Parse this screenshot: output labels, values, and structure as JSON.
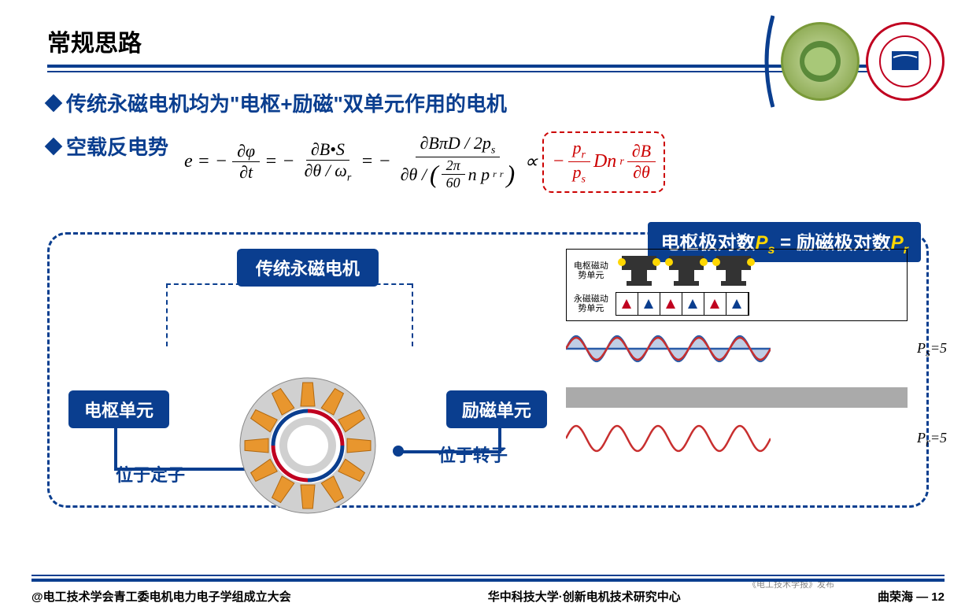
{
  "title": "常规思路",
  "bullet1": "传统永磁电机均为\"电枢+励磁\"双单元作用的电机",
  "bullet2": "空载反电势",
  "equation": {
    "lhs": "e",
    "term1_num": "∂φ",
    "term1_den": "∂t",
    "term2_num": "∂B•S",
    "term2_den": "∂θ / ω",
    "term3_num": "∂BπD / 2p",
    "term3_den_outer": "∂θ /",
    "term3_den_inner_num": "2π",
    "term3_den_inner_den": "60",
    "term3_den_tail": "n p",
    "prop": "∝",
    "red_frac_num": "p",
    "red_frac_den": "p",
    "red_tail1": "Dn",
    "red_tail2_num": "∂B",
    "red_tail2_den": "∂θ",
    "sub_s": "s",
    "sub_r": "r"
  },
  "annotation": {
    "part1": "电枢极对数",
    "var1": "P",
    "sub1": "s",
    "eq": "=",
    "part2": "励磁极对数",
    "var2": "P",
    "sub2": "r"
  },
  "diagram": {
    "center_label": "传统永磁电机",
    "left_label": "电枢单元",
    "right_label": "励磁单元",
    "left_sub": "位于定子",
    "right_sub": "位于转子",
    "unit1_label": "电枢磁动势单元",
    "unit2_label": "永磁磁动势单元",
    "ps_label": "P",
    "ps_sub": "s",
    "ps_val": "=5",
    "pr_label": "P",
    "pr_sub": "r",
    "pr_val": "=5"
  },
  "colors": {
    "primary": "#0a3e8f",
    "accent_red": "#c00020",
    "accent_orange": "#e8962e",
    "wave_blue": "#2a5ca8",
    "wave_red": "#c82f2f",
    "gray": "#aaaaaa",
    "yellow": "#ffd700"
  },
  "footer": {
    "left": "@电工技术学会青工委电机电力电子学组成立大会",
    "center": "华中科技大学·创新电机技术研究中心",
    "right_name": "曲荣海",
    "right_page": "— 12"
  },
  "watermark": "《电工技术学报》发布",
  "logos": {
    "left_border": "#7a9a3a",
    "right_border": "#c00020"
  }
}
